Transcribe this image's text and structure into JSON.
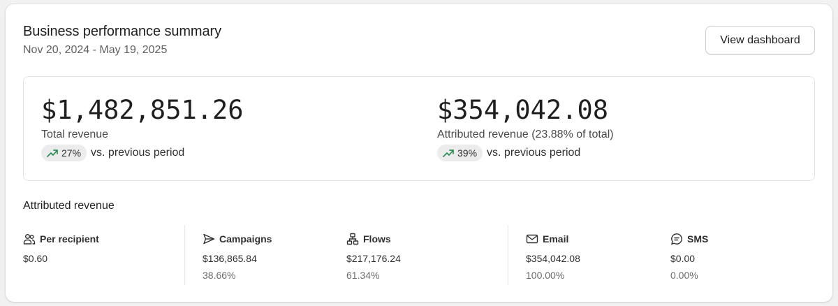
{
  "header": {
    "title": "Business performance summary",
    "date_range": "Nov 20, 2024 - May 19, 2025",
    "view_button": "View dashboard"
  },
  "metrics": [
    {
      "value": "$1,482,851.26",
      "label": "Total revenue",
      "trend_pct": "27%",
      "trend_text": "vs. previous period",
      "trend_icon": "trend-up-icon"
    },
    {
      "value": "$354,042.08",
      "label": "Attributed revenue (23.88% of total)",
      "trend_pct": "39%",
      "trend_text": "vs. previous period",
      "trend_icon": "trend-up-icon"
    }
  ],
  "attributed": {
    "title": "Attributed revenue",
    "stats": [
      {
        "icon": "people-icon",
        "label": "Per recipient",
        "value": "$0.60",
        "pct": ""
      },
      {
        "icon": "send-icon",
        "label": "Campaigns",
        "value": "$136,865.84",
        "pct": "38.66%"
      },
      {
        "icon": "flows-icon",
        "label": "Flows",
        "value": "$217,176.24",
        "pct": "61.34%"
      },
      {
        "icon": "mail-icon",
        "label": "Email",
        "value": "$354,042.08",
        "pct": "100.00%"
      },
      {
        "icon": "sms-icon",
        "label": "SMS",
        "value": "$0.00",
        "pct": "0.00%"
      }
    ]
  },
  "colors": {
    "trend_up": "#2e8b57",
    "background": "#f1f1f1",
    "card": "#ffffff"
  }
}
